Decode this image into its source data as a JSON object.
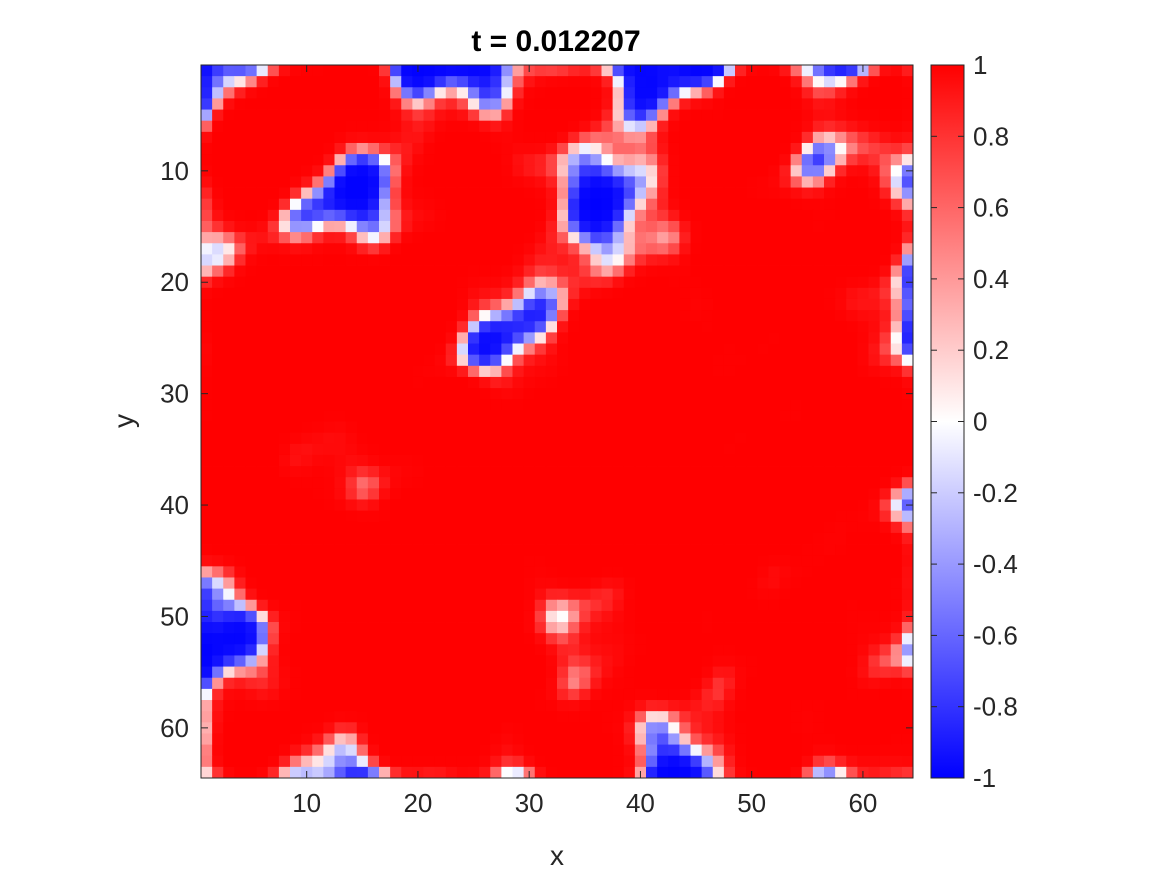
{
  "chart_data": {
    "type": "heatmap",
    "title": "t = 0.012207",
    "xlabel": "x",
    "ylabel": "y",
    "grid_size": 64,
    "xlim": [
      0.5,
      64.5
    ],
    "ylim": [
      0.5,
      64.5
    ],
    "y_direction": "reversed",
    "x_ticks": [
      10,
      20,
      30,
      40,
      50,
      60
    ],
    "y_ticks": [
      10,
      20,
      30,
      40,
      50,
      60
    ],
    "colorbar": {
      "limits": [
        -1,
        1
      ],
      "ticks": [
        1,
        0.8,
        0.6,
        0.4,
        0.2,
        0,
        -0.2,
        -0.4,
        -0.6,
        -0.8,
        -1
      ],
      "tick_labels": [
        "1",
        "0.8",
        "0.6",
        "0.4",
        "0.2",
        "0",
        "-0.2",
        "-0.4",
        "-0.6",
        "-0.8",
        "-1"
      ],
      "colormap": [
        "#0000ff",
        "#ffffff",
        "#ff0000"
      ],
      "location": "right"
    },
    "field": {
      "description_of_values": "Binary-like phase field u(x,y) in [-1,1]; red ≈ +1, blue ≈ -1 with white interfaces",
      "positive_centers": [
        [
          4,
          10,
          4
        ],
        [
          8,
          5,
          3.5
        ],
        [
          14,
          3,
          3
        ],
        [
          23,
          9,
          4
        ],
        [
          33,
          4,
          3.5
        ],
        [
          46,
          9,
          4.5
        ],
        [
          52,
          4,
          3
        ],
        [
          62,
          4,
          3
        ],
        [
          60,
          15,
          4
        ],
        [
          28,
          15,
          3.5
        ],
        [
          21,
          20,
          3.5
        ],
        [
          39,
          24,
          5
        ],
        [
          50,
          18,
          4
        ],
        [
          5,
          24,
          5
        ],
        [
          13,
          22,
          4
        ],
        [
          16,
          30,
          5
        ],
        [
          34,
          33,
          4.5
        ],
        [
          44,
          32,
          4.5
        ],
        [
          56,
          27,
          5
        ],
        [
          62,
          34,
          3.5
        ],
        [
          2,
          40,
          4
        ],
        [
          9,
          44,
          4.5
        ],
        [
          21,
          45,
          5
        ],
        [
          28,
          40,
          4
        ],
        [
          37,
          42,
          4.5
        ],
        [
          46,
          45,
          4
        ],
        [
          53,
          39,
          4
        ],
        [
          61,
          46,
          4
        ],
        [
          14,
          54,
          4.5
        ],
        [
          27,
          55,
          5
        ],
        [
          42,
          54,
          4
        ],
        [
          54,
          53,
          4
        ],
        [
          5,
          61,
          4
        ],
        [
          21,
          60,
          4
        ],
        [
          35,
          63,
          3.5
        ],
        [
          51,
          62,
          3.5
        ],
        [
          62,
          60,
          4
        ],
        [
          24,
          33,
          3
        ],
        [
          4,
          33,
          3
        ]
      ]
    }
  }
}
